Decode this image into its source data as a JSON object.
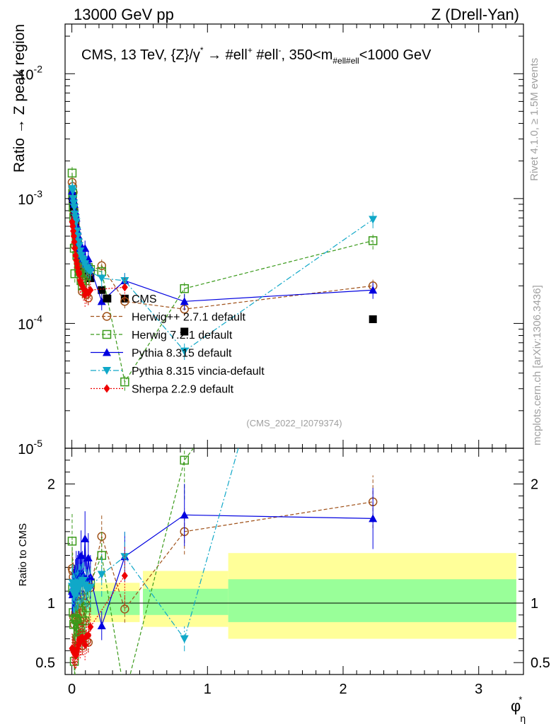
{
  "header": {
    "left": "13000 GeV pp",
    "right": "Z (Drell-Yan)"
  },
  "side_labels": {
    "rivet": "Rivet 4.1.0, ≥ 1.5M events",
    "mcplots": "mcplots.cern.ch [arXiv:1306.3436]"
  },
  "colors": {
    "data": "#000000",
    "herwigpp": "#a0521a",
    "herwig7": "#3a9a1a",
    "pythia": "#0000e0",
    "vincia": "#10a8c8",
    "sherpa": "#ee0000",
    "band_inner": "#99ff99",
    "band_outer": "#ffff99",
    "watermark": "#a0a0a0"
  },
  "chart_data": {
    "type": "line",
    "title": "CMS, 13 TeV, {Z}/γ* → #ell⁺ #ell⁻, 350<m#ell#ell<1000 GeV",
    "title_parts": {
      "pre": "CMS, 13 TeV, {Z}/γ",
      "star": "*",
      "arrow": "→",
      "l1": "#ell",
      "plus": "+",
      "l2": "#ell",
      "minus": "-",
      "mid": ", 350<m",
      "sub": "#ell#ell",
      "post": "<1000 GeV"
    },
    "watermark": "(CMS_2022_I2079374)",
    "xlabel": "φ",
    "xlabel_star": "*",
    "xlabel_sub": "η",
    "ylabel": "Ratio → Z peak region",
    "ratio_ylabel": "Ratio to CMS",
    "xlim": [
      -0.05,
      3.33
    ],
    "ylim": [
      1e-05,
      0.025
    ],
    "ratio_ylim": [
      0.4,
      2.3
    ],
    "x_ticks": [
      {
        "v": 0,
        "label": "0"
      },
      {
        "v": 1,
        "label": "1"
      },
      {
        "v": 2,
        "label": "2"
      },
      {
        "v": 3,
        "label": "3"
      }
    ],
    "y_ticks": [
      {
        "v": 0.01,
        "base": "10",
        "exp": "-2"
      },
      {
        "v": 0.001,
        "base": "10",
        "exp": "-3"
      },
      {
        "v": 0.0001,
        "base": "10",
        "exp": "-4"
      },
      {
        "v": 1e-05,
        "base": "10",
        "exp": "-5"
      }
    ],
    "ratio_ticks": [
      {
        "v": 0.5,
        "label": "0.5"
      },
      {
        "v": 1,
        "label": "1"
      },
      {
        "v": 2,
        "label": "2"
      }
    ],
    "bins": [
      0,
      0.004,
      0.008,
      0.012,
      0.016,
      0.02,
      0.024,
      0.029,
      0.034,
      0.039,
      0.045,
      0.051,
      0.057,
      0.064,
      0.072,
      0.081,
      0.091,
      0.102,
      0.114,
      0.128,
      0.145,
      0.165,
      0.189,
      0.219,
      0.258,
      0.312,
      0.391,
      0.524,
      0.695,
      0.918,
      1.153,
      1.496,
      1.947,
      2.522,
      3.277
    ],
    "band": [
      {
        "x0": 0.0,
        "x1": 0.5,
        "inner": [
          0.9,
          1.1
        ],
        "outer": [
          0.84,
          1.17
        ]
      },
      {
        "x0": 0.524,
        "x1": 1.153,
        "inner": [
          0.9,
          1.12
        ],
        "outer": [
          0.8,
          1.27
        ]
      },
      {
        "x0": 1.153,
        "x1": 3.277,
        "inner": [
          0.84,
          1.2
        ],
        "outer": [
          0.7,
          1.42
        ]
      }
    ],
    "series": [
      {
        "name": "CMS",
        "legend": "CMS",
        "key": "data",
        "marker": "square_filled",
        "line": "none",
        "x": [
          0.002,
          0.006,
          0.01,
          0.014,
          0.018,
          0.022,
          0.027,
          0.032,
          0.037,
          0.042,
          0.048,
          0.054,
          0.061,
          0.068,
          0.077,
          0.086,
          0.097,
          0.108,
          0.121,
          0.137,
          0.22,
          0.262,
          0.39,
          0.83,
          2.22
        ],
        "y": [
          0.00105,
          0.00098,
          0.00092,
          0.00085,
          0.00078,
          0.0007,
          0.00063,
          0.00056,
          0.0005,
          0.00045,
          0.0004,
          0.00036,
          0.00033,
          0.0003,
          0.00028,
          0.00027,
          0.00026,
          0.00025,
          0.00024,
          0.00023,
          0.000185,
          0.000158,
          0.000158,
          8.6e-05,
          0.000108
        ]
      },
      {
        "name": "Herwig++ 2.7.1 default",
        "legend": "Herwig++ 2.7.1 default",
        "key": "herwigpp",
        "marker": "circle_open",
        "line": "dashed",
        "x": [
          0.002,
          0.006,
          0.01,
          0.014,
          0.018,
          0.022,
          0.027,
          0.032,
          0.037,
          0.042,
          0.048,
          0.054,
          0.061,
          0.068,
          0.077,
          0.086,
          0.097,
          0.108,
          0.121,
          0.137,
          0.22,
          0.39,
          0.83,
          2.22
        ],
        "y": [
          0.00135,
          0.00125,
          0.00112,
          0.00075,
          0.00064,
          0.00042,
          0.00058,
          0.00052,
          0.00042,
          0.0004,
          0.00028,
          0.00036,
          0.00028,
          0.00032,
          0.00018,
          0.00023,
          0.00026,
          0.00017,
          0.00016,
          0.00026,
          0.00029,
          0.00015,
          0.00013,
          0.0002
        ],
        "ratio": [
          1.29,
          1.27,
          1.22,
          0.88,
          0.82,
          0.6,
          0.92,
          0.93,
          0.84,
          0.89,
          0.7,
          1.0,
          0.85,
          1.07,
          0.64,
          0.85,
          1.0,
          0.68,
          0.67,
          1.13,
          1.56,
          0.95,
          1.6,
          1.85
        ],
        "err_rel": 0.12
      },
      {
        "name": "Herwig 7.2.1 default",
        "legend": "Herwig 7.2.1 default",
        "key": "herwig7",
        "marker": "square_open",
        "line": "dashed",
        "x": [
          0.002,
          0.006,
          0.01,
          0.014,
          0.018,
          0.022,
          0.027,
          0.032,
          0.037,
          0.042,
          0.048,
          0.054,
          0.061,
          0.068,
          0.077,
          0.086,
          0.097,
          0.108,
          0.121,
          0.137,
          0.22,
          0.39,
          0.83,
          2.22
        ],
        "y": [
          0.0016,
          0.0011,
          0.00085,
          0.0007,
          0.0004,
          0.00025,
          0.00055,
          0.00048,
          0.00035,
          0.00045,
          0.00032,
          0.00025,
          0.00026,
          0.00022,
          0.0002,
          0.0003,
          0.00022,
          0.00024,
          0.00028,
          0.00027,
          0.00026,
          3.4e-05,
          0.00019,
          0.00046
        ],
        "ratio": [
          1.52,
          1.12,
          0.92,
          0.82,
          0.51,
          0.36,
          0.87,
          0.86,
          0.7,
          1.0,
          0.8,
          0.69,
          0.79,
          0.73,
          0.71,
          1.11,
          0.85,
          0.96,
          1.17,
          1.17,
          1.4,
          0.22,
          2.2,
          4.3
        ],
        "err_rel": 0.15
      },
      {
        "name": "Pythia 8.315 default",
        "legend": "Pythia 8.315 default",
        "key": "pythia",
        "marker": "triangle_up",
        "line": "solid",
        "x": [
          0.002,
          0.006,
          0.01,
          0.014,
          0.018,
          0.022,
          0.027,
          0.032,
          0.037,
          0.042,
          0.048,
          0.054,
          0.061,
          0.068,
          0.077,
          0.086,
          0.097,
          0.108,
          0.121,
          0.137,
          0.22,
          0.39,
          0.83,
          2.22
        ],
        "y": [
          0.00115,
          0.00105,
          0.001,
          0.00095,
          0.0009,
          0.0008,
          0.00075,
          0.0007,
          0.0006,
          0.00055,
          0.0005,
          0.00045,
          0.0004,
          0.00042,
          0.00035,
          0.00033,
          0.0004,
          0.0003,
          0.00033,
          0.00028,
          0.00015,
          0.00022,
          0.00015,
          0.000185
        ],
        "ratio": [
          1.1,
          1.07,
          1.09,
          1.12,
          1.15,
          1.14,
          1.19,
          1.25,
          1.2,
          1.22,
          1.25,
          1.25,
          1.21,
          1.4,
          1.25,
          1.22,
          1.54,
          1.2,
          1.38,
          1.22,
          0.81,
          1.39,
          1.74,
          1.71
        ],
        "err_rel": 0.15
      },
      {
        "name": "Pythia 8.315 vincia-default",
        "legend": "Pythia 8.315 vincia-default",
        "key": "vincia",
        "marker": "triangle_down",
        "line": "dashdot",
        "x": [
          0.002,
          0.006,
          0.01,
          0.014,
          0.018,
          0.022,
          0.027,
          0.032,
          0.037,
          0.042,
          0.048,
          0.054,
          0.061,
          0.068,
          0.077,
          0.086,
          0.097,
          0.108,
          0.121,
          0.137,
          0.22,
          0.39,
          0.83,
          2.22
        ],
        "y": [
          0.0012,
          0.00115,
          0.001,
          0.00092,
          0.00085,
          0.00075,
          0.0007,
          0.00065,
          0.00055,
          0.0005,
          0.00045,
          0.00042,
          0.00038,
          0.00035,
          0.00033,
          0.00032,
          0.0003,
          0.00028,
          0.00027,
          0.00026,
          0.00023,
          0.00022,
          6e-05,
          0.00068
        ],
        "ratio": [
          1.14,
          1.17,
          1.09,
          1.08,
          1.09,
          1.07,
          1.11,
          1.16,
          1.1,
          1.11,
          1.12,
          1.17,
          1.15,
          1.17,
          1.18,
          1.19,
          1.15,
          1.12,
          1.12,
          1.13,
          1.24,
          1.39,
          0.7,
          6.3
        ],
        "err_rel": 0.15
      },
      {
        "name": "Sherpa 2.2.9 default",
        "legend": "Sherpa 2.2.9 default",
        "key": "sherpa",
        "marker": "diamond",
        "line": "dotted",
        "x": [
          0.002,
          0.006,
          0.01,
          0.014,
          0.018,
          0.022,
          0.027,
          0.032,
          0.037,
          0.042,
          0.048,
          0.054,
          0.061,
          0.068,
          0.077,
          0.086,
          0.097,
          0.108,
          0.121,
          0.137,
          0.39
        ],
        "y": [
          0.00065,
          0.0006,
          0.00055,
          0.0005,
          0.00045,
          0.0004,
          0.00035,
          0.00032,
          0.0003,
          0.00028,
          0.00026,
          0.00025,
          0.00022,
          0.00021,
          0.0002,
          0.00019,
          0.00017,
          0.00018,
          0.000175,
          0.000185,
          0.000195
        ],
        "ratio": [
          0.62,
          0.61,
          0.6,
          0.59,
          0.58,
          0.57,
          0.56,
          0.57,
          0.6,
          0.62,
          0.65,
          0.69,
          0.67,
          0.7,
          0.71,
          0.7,
          0.65,
          0.72,
          0.73,
          0.8,
          1.23
        ],
        "err_rel": 0.2
      }
    ]
  }
}
